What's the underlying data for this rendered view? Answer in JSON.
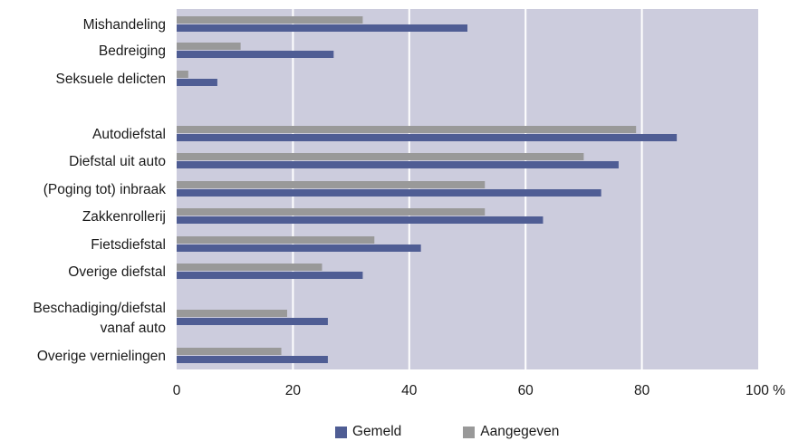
{
  "chart_data": {
    "type": "bar",
    "orientation": "horizontal",
    "title": "",
    "xlabel": "",
    "ylabel": "",
    "xlim": [
      0,
      100
    ],
    "x_ticks": [
      "0",
      "20",
      "40",
      "60",
      "80",
      "100 %"
    ],
    "grid": true,
    "legend_position": "bottom",
    "categories": [
      "Mishandeling",
      "Bedreiging",
      "Seksuele delicten",
      "Autodiefstal",
      "Diefstal uit auto",
      "(Poging tot) inbraak",
      "Zakkenrollerij",
      "Fietsdiefstal",
      "Overige diefstal",
      "Beschadiging/diefstal vanaf auto",
      "Overige vernielingen"
    ],
    "category_label_lines": [
      [
        "Mishandeling"
      ],
      [
        "Bedreiging"
      ],
      [
        "Seksuele delicten"
      ],
      [
        "Autodiefstal"
      ],
      [
        "Diefstal uit auto"
      ],
      [
        "(Poging tot) inbraak"
      ],
      [
        "Zakkenrollerij"
      ],
      [
        "Fietsdiefstal"
      ],
      [
        "Overige diefstal"
      ],
      [
        "Beschadiging/diefstal",
        "vanaf auto"
      ],
      [
        "Overige vernielingen"
      ]
    ],
    "series": [
      {
        "name": "Aangegeven",
        "color": "#999999",
        "values": [
          32,
          11,
          2,
          79,
          70,
          53,
          53,
          34,
          25,
          19,
          18
        ]
      },
      {
        "name": "Gemeld",
        "color": "#4f5d94",
        "values": [
          50,
          27,
          7,
          86,
          76,
          73,
          63,
          42,
          32,
          26,
          26
        ]
      }
    ]
  },
  "colors": {
    "plot_background": "#ccccdd",
    "gridline": "#ffffff"
  },
  "legend": [
    {
      "label": "Gemeld",
      "color": "#4f5d94"
    },
    {
      "label": "Aangegeven",
      "color": "#999999"
    }
  ]
}
